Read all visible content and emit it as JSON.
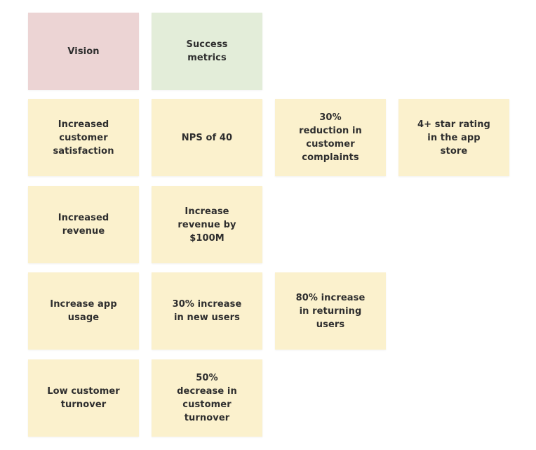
{
  "board": {
    "headers": {
      "vision": "Vision",
      "success_metrics": "Success\nmetrics"
    },
    "rows": [
      {
        "vision": "Increased\ncustomer\nsatisfaction",
        "metrics": [
          "NPS of 40",
          "30%\nreduction in\ncustomer\ncomplaints",
          "4+ star rating\nin the app\nstore"
        ]
      },
      {
        "vision": "Increased\nrevenue",
        "metrics": [
          "Increase\nrevenue by\n$100M"
        ]
      },
      {
        "vision": "Increase app\nusage",
        "metrics": [
          "30% increase\nin new users",
          "80% increase\nin returning\nusers"
        ]
      },
      {
        "vision": "Low customer\nturnover",
        "metrics": [
          "50%\ndecrease in\ncustomer\nturnover"
        ]
      }
    ],
    "colors": {
      "vision_header": "#ecd4d4",
      "metrics_header": "#e3edd9",
      "sticky_note": "#fbf1cd",
      "text": "#2e2e2e"
    }
  }
}
